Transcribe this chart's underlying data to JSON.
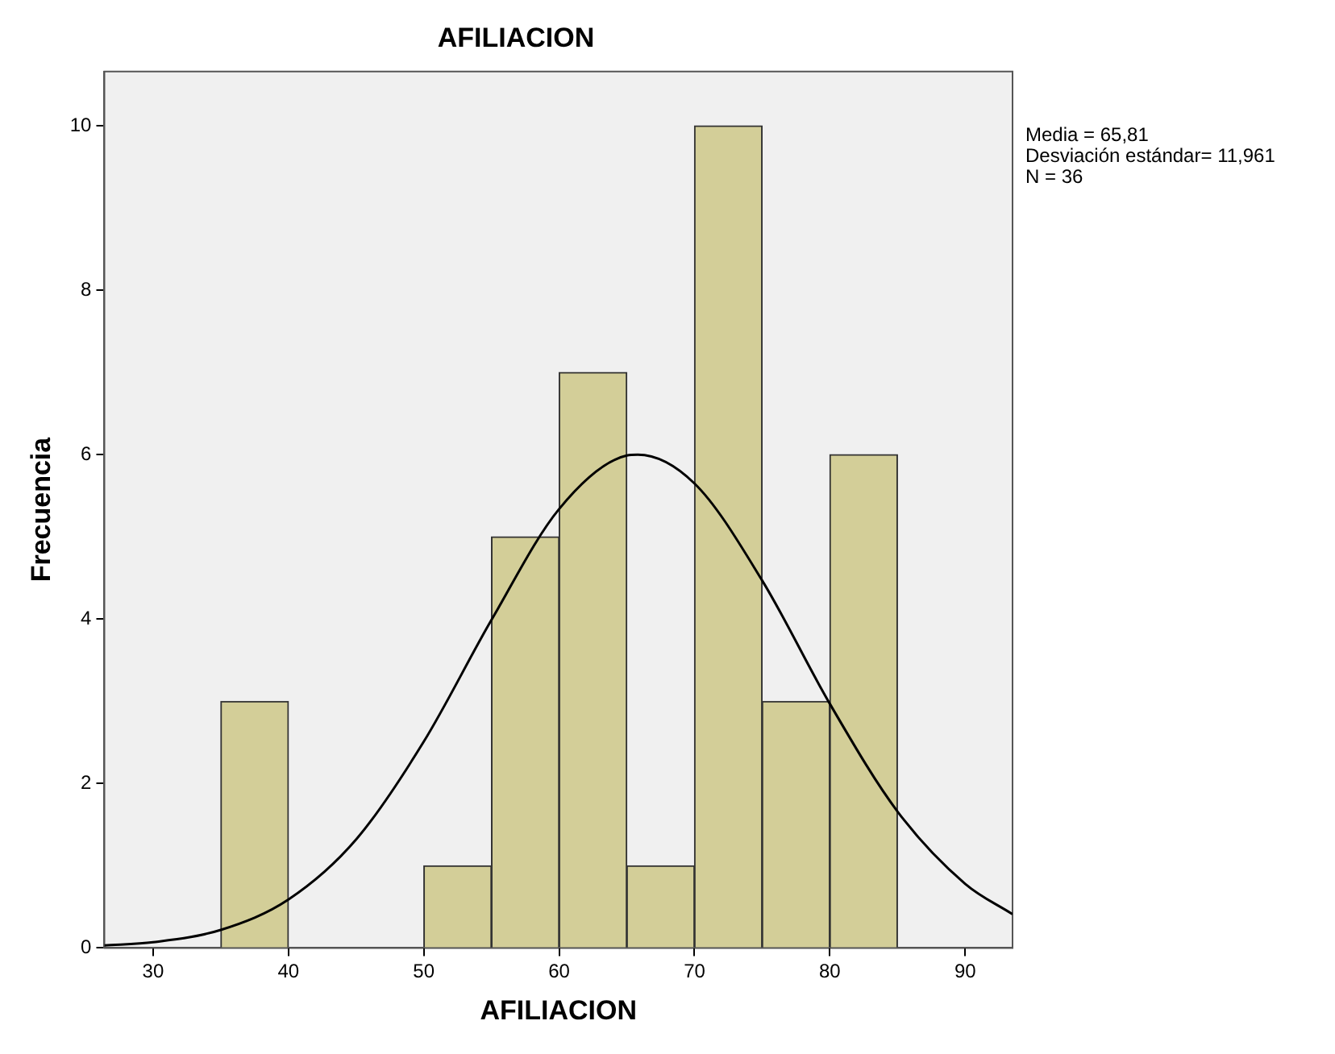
{
  "chart_data": {
    "type": "histogram",
    "title": "AFILIACION",
    "xlabel": "AFILIACION",
    "ylabel": "Frecuencia",
    "bins": [
      35,
      40,
      45,
      50,
      55,
      60,
      65,
      70,
      75,
      80,
      85
    ],
    "values": [
      3,
      0,
      0,
      1,
      5,
      7,
      1,
      10,
      3,
      6
    ],
    "color": "#d3ce98",
    "series": [
      {
        "type": "line",
        "color": "#000000",
        "x": [
          26.4,
          30,
          35,
          40,
          45,
          50,
          55,
          60,
          65,
          65.81,
          70,
          75,
          80,
          85,
          90,
          93.5
        ],
        "values": [
          0.03,
          0.07,
          0.22,
          0.59,
          1.32,
          2.51,
          3.99,
          5.34,
          5.99,
          6.0,
          5.65,
          4.47,
          2.97,
          1.66,
          0.78,
          0.41
        ]
      }
    ],
    "xlim": [
      26.4,
      93.5
    ],
    "ylim": [
      0,
      10.66
    ],
    "xticks": [
      30,
      40,
      50,
      60,
      70,
      80,
      90
    ],
    "yticks": [
      0,
      2,
      4,
      6,
      8,
      10
    ],
    "grid": false,
    "annotations": [
      "Media = 65,81",
      "Desviación estándar= 11,961",
      "N = 36"
    ]
  }
}
